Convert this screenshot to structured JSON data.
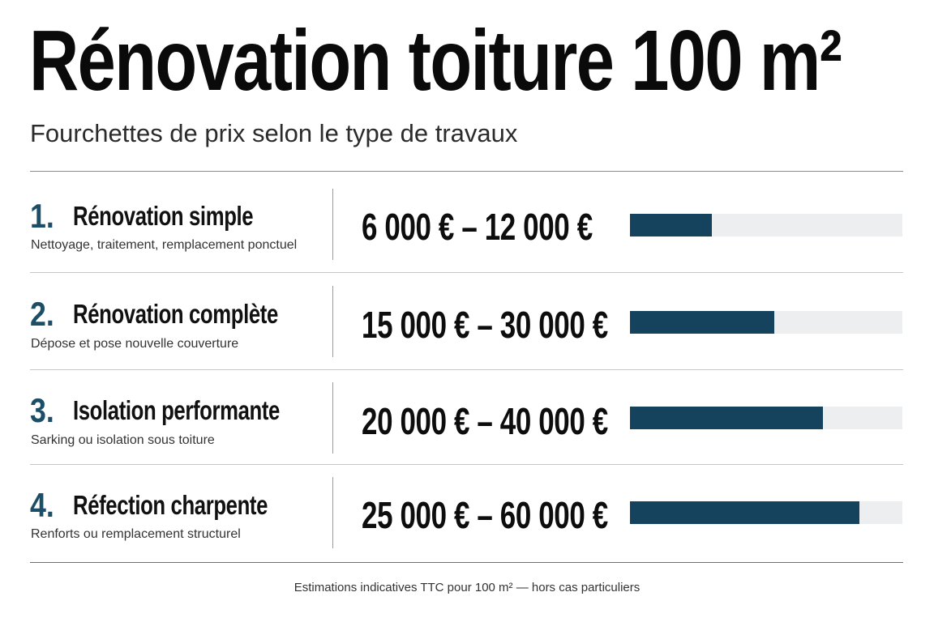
{
  "header": {
    "title": "Rénovation toiture 100 m²",
    "subtitle": "Fourchettes de prix selon le type de travaux"
  },
  "footnote": "Estimations indicatives TTC pour 100 m² — hors cas particuliers",
  "colors": {
    "accent_number": "#1d4e68",
    "bar_fill": "#15435e",
    "bar_track": "#eceef0"
  },
  "chart_data": {
    "type": "bar",
    "orientation": "horizontal",
    "bar_scale_max": 70000,
    "categories": [
      "Rénovation simple",
      "Rénovation complète",
      "Isolation performante",
      "Réfection charpente"
    ],
    "rows": [
      {
        "number": "1.",
        "label": "Rénovation simple",
        "description": "Nettoyage, traitement, remplacement ponctuel",
        "range_text": "6 000 € – 12 000 €",
        "min": 6000,
        "max": 12000,
        "bar_value": 21000
      },
      {
        "number": "2.",
        "label": "Rénovation complète",
        "description": "Dépose et pose nouvelle couverture",
        "range_text": "15 000 € – 30 000 €",
        "min": 15000,
        "max": 30000,
        "bar_value": 37000
      },
      {
        "number": "3.",
        "label": "Isolation performante",
        "description": "Sarking ou isolation sous toiture",
        "range_text": "20 000 € – 40 000 €",
        "min": 20000,
        "max": 40000,
        "bar_value": 49500
      },
      {
        "number": "4.",
        "label": "Réfection charpente",
        "description": "Renforts ou remplacement structurel",
        "range_text": "25 000 € – 60 000 €",
        "min": 25000,
        "max": 60000,
        "bar_value": 59000
      }
    ]
  }
}
